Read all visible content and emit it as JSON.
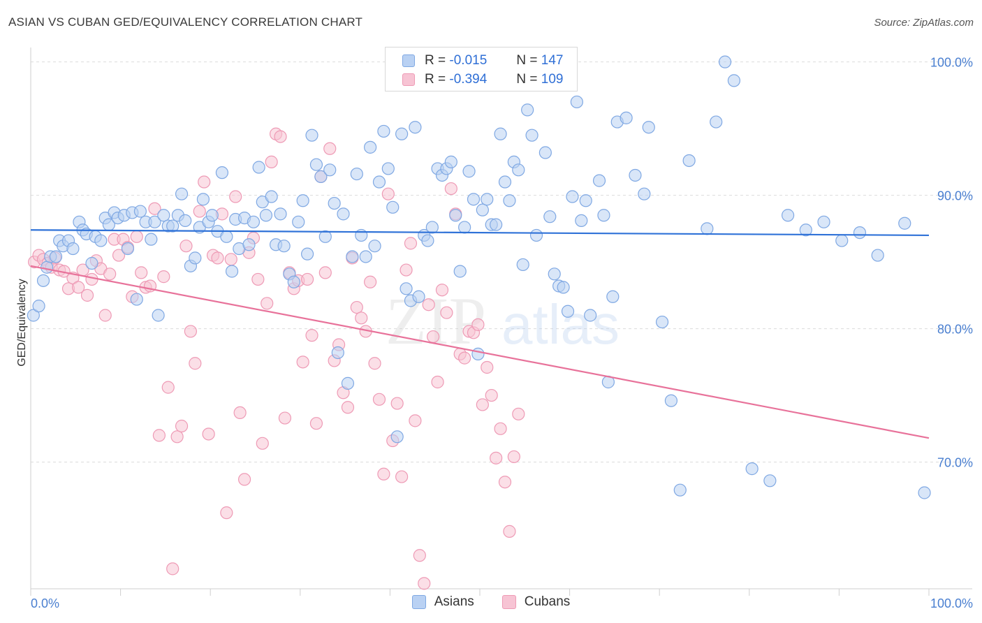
{
  "title": "ASIAN VS CUBAN GED/EQUIVALENCY CORRELATION CHART",
  "source": "Source: ZipAtlas.com",
  "watermark": {
    "zip": "ZIP",
    "atlas": "atlas"
  },
  "colors": {
    "asian_fill": "#b9d1f3",
    "asian_stroke": "#7fa8e3",
    "asian_line": "#2f72d8",
    "cuban_fill": "#f7c4d4",
    "cuban_stroke": "#ee9ab5",
    "cuban_line": "#e8729a",
    "grid": "#dcdcdc",
    "accent_text": "#4a7fd0"
  },
  "legend": {
    "rows": [
      {
        "r_label": "R =",
        "r_value": "-0.015",
        "n_label": "N =",
        "n_value": "147"
      },
      {
        "r_label": "R =",
        "r_value": "-0.394",
        "n_label": "N =",
        "n_value": "109"
      }
    ]
  },
  "bottom_legend": {
    "asians": "Asians",
    "cubans": "Cubans"
  },
  "chart_data": {
    "type": "scatter",
    "title": "ASIAN VS CUBAN GED/EQUIVALENCY CORRELATION CHART",
    "xlabel": "",
    "ylabel": "GED/Equivalency",
    "xlim": [
      0,
      100
    ],
    "ylim": [
      60.5,
      101.5
    ],
    "x_tick_labels": [
      "0.0%",
      "100.0%"
    ],
    "y_ticks": [
      {
        "value": 100,
        "label": "100.0%"
      },
      {
        "value": 90,
        "label": "90.0%"
      },
      {
        "value": 80,
        "label": "80.0%"
      },
      {
        "value": 70,
        "label": "70.0%"
      }
    ],
    "grid": true,
    "legend_position": "top-center",
    "series": [
      {
        "name": "Asians",
        "r": -0.015,
        "n": 147,
        "trend": {
          "x": [
            0,
            100
          ],
          "y": [
            87.4,
            87.0
          ]
        },
        "points": [
          [
            0.3,
            81.0
          ],
          [
            0.9,
            81.7
          ],
          [
            1.4,
            83.6
          ],
          [
            1.8,
            84.6
          ],
          [
            2.2,
            85.4
          ],
          [
            2.8,
            85.4
          ],
          [
            3.2,
            86.6
          ],
          [
            3.6,
            86.2
          ],
          [
            4.2,
            86.6
          ],
          [
            4.7,
            86.0
          ],
          [
            5.4,
            88.0
          ],
          [
            5.8,
            87.4
          ],
          [
            6.2,
            87.1
          ],
          [
            6.8,
            84.9
          ],
          [
            7.2,
            86.9
          ],
          [
            7.8,
            86.6
          ],
          [
            8.3,
            88.3
          ],
          [
            8.7,
            87.8
          ],
          [
            9.3,
            88.7
          ],
          [
            9.7,
            88.3
          ],
          [
            10.4,
            88.5
          ],
          [
            10.8,
            86.0
          ],
          [
            11.3,
            88.7
          ],
          [
            11.8,
            82.2
          ],
          [
            12.2,
            88.8
          ],
          [
            12.8,
            88.0
          ],
          [
            13.4,
            86.7
          ],
          [
            13.8,
            88.0
          ],
          [
            14.2,
            81.0
          ],
          [
            14.8,
            88.5
          ],
          [
            15.3,
            87.7
          ],
          [
            15.8,
            87.7
          ],
          [
            16.4,
            88.5
          ],
          [
            16.8,
            90.1
          ],
          [
            17.2,
            88.1
          ],
          [
            17.8,
            84.7
          ],
          [
            18.3,
            85.3
          ],
          [
            18.8,
            87.6
          ],
          [
            19.2,
            89.7
          ],
          [
            19.8,
            88.0
          ],
          [
            20.2,
            88.5
          ],
          [
            20.8,
            87.3
          ],
          [
            21.3,
            91.7
          ],
          [
            21.8,
            86.9
          ],
          [
            22.4,
            84.3
          ],
          [
            22.8,
            88.2
          ],
          [
            23.2,
            86.0
          ],
          [
            23.8,
            88.3
          ],
          [
            24.3,
            86.3
          ],
          [
            24.8,
            88.0
          ],
          [
            25.4,
            92.1
          ],
          [
            25.8,
            89.5
          ],
          [
            26.2,
            88.5
          ],
          [
            26.8,
            89.9
          ],
          [
            27.3,
            86.3
          ],
          [
            27.8,
            88.6
          ],
          [
            28.2,
            86.2
          ],
          [
            28.8,
            84.1
          ],
          [
            29.3,
            83.5
          ],
          [
            29.8,
            88.0
          ],
          [
            30.3,
            89.6
          ],
          [
            30.8,
            85.6
          ],
          [
            31.3,
            94.5
          ],
          [
            31.8,
            92.3
          ],
          [
            32.3,
            91.4
          ],
          [
            32.8,
            86.9
          ],
          [
            33.3,
            91.9
          ],
          [
            33.8,
            89.4
          ],
          [
            34.2,
            78.2
          ],
          [
            34.8,
            88.6
          ],
          [
            35.3,
            75.9
          ],
          [
            35.8,
            85.4
          ],
          [
            36.3,
            91.6
          ],
          [
            36.8,
            87.0
          ],
          [
            37.3,
            85.4
          ],
          [
            37.8,
            93.6
          ],
          [
            38.3,
            86.2
          ],
          [
            38.8,
            91.0
          ],
          [
            39.3,
            94.8
          ],
          [
            39.8,
            92.0
          ],
          [
            40.3,
            89.1
          ],
          [
            40.8,
            71.9
          ],
          [
            41.3,
            94.6
          ],
          [
            41.8,
            83.0
          ],
          [
            42.3,
            82.1
          ],
          [
            42.8,
            95.1
          ],
          [
            43.2,
            82.4
          ],
          [
            43.8,
            87.0
          ],
          [
            44.2,
            86.6
          ],
          [
            44.7,
            87.6
          ],
          [
            45.3,
            92.0
          ],
          [
            45.8,
            91.5
          ],
          [
            46.3,
            92.0
          ],
          [
            46.8,
            92.5
          ],
          [
            47.3,
            88.5
          ],
          [
            47.8,
            84.3
          ],
          [
            48.3,
            87.6
          ],
          [
            48.8,
            91.8
          ],
          [
            49.3,
            89.7
          ],
          [
            49.8,
            78.1
          ],
          [
            50.3,
            88.9
          ],
          [
            50.8,
            89.7
          ],
          [
            51.3,
            87.8
          ],
          [
            51.8,
            87.8
          ],
          [
            52.3,
            94.6
          ],
          [
            52.8,
            91.0
          ],
          [
            53.3,
            89.6
          ],
          [
            53.8,
            92.5
          ],
          [
            54.3,
            91.9
          ],
          [
            54.8,
            84.8
          ],
          [
            55.3,
            96.4
          ],
          [
            55.8,
            94.5
          ],
          [
            56.3,
            87.0
          ],
          [
            57.3,
            93.2
          ],
          [
            57.8,
            88.4
          ],
          [
            58.3,
            84.1
          ],
          [
            58.8,
            83.2
          ],
          [
            59.3,
            83.1
          ],
          [
            59.8,
            81.3
          ],
          [
            60.3,
            89.9
          ],
          [
            60.8,
            97.0
          ],
          [
            61.3,
            88.1
          ],
          [
            61.8,
            89.6
          ],
          [
            62.3,
            81.0
          ],
          [
            63.3,
            91.1
          ],
          [
            63.8,
            88.5
          ],
          [
            64.3,
            76.0
          ],
          [
            64.8,
            82.4
          ],
          [
            65.3,
            95.5
          ],
          [
            66.3,
            95.8
          ],
          [
            67.3,
            91.5
          ],
          [
            68.3,
            90.1
          ],
          [
            68.8,
            95.1
          ],
          [
            70.3,
            80.5
          ],
          [
            71.3,
            74.6
          ],
          [
            72.3,
            67.9
          ],
          [
            73.3,
            92.6
          ],
          [
            75.3,
            87.5
          ],
          [
            76.3,
            95.5
          ],
          [
            77.3,
            100.0
          ],
          [
            78.3,
            98.6
          ],
          [
            80.3,
            69.5
          ],
          [
            82.3,
            68.6
          ],
          [
            84.3,
            88.5
          ],
          [
            86.3,
            87.4
          ],
          [
            88.3,
            88.0
          ],
          [
            90.3,
            86.6
          ],
          [
            92.3,
            87.2
          ],
          [
            94.3,
            85.5
          ],
          [
            97.3,
            87.9
          ],
          [
            99.5,
            67.7
          ]
        ]
      },
      {
        "name": "Cubans",
        "r": -0.394,
        "n": 109,
        "trend": {
          "x": [
            0,
            100
          ],
          "y": [
            84.7,
            71.8
          ]
        },
        "points": [
          [
            0.4,
            85.0
          ],
          [
            0.9,
            85.5
          ],
          [
            1.4,
            85.2
          ],
          [
            1.9,
            84.9
          ],
          [
            2.3,
            84.6
          ],
          [
            2.7,
            85.3
          ],
          [
            3.2,
            84.4
          ],
          [
            3.7,
            84.3
          ],
          [
            4.2,
            83.0
          ],
          [
            4.7,
            83.8
          ],
          [
            5.3,
            83.1
          ],
          [
            5.8,
            84.4
          ],
          [
            6.3,
            82.5
          ],
          [
            6.8,
            83.7
          ],
          [
            7.3,
            85.1
          ],
          [
            7.8,
            84.5
          ],
          [
            8.3,
            81.0
          ],
          [
            8.8,
            84.1
          ],
          [
            9.3,
            86.7
          ],
          [
            9.8,
            85.5
          ],
          [
            10.3,
            86.7
          ],
          [
            10.8,
            86.1
          ],
          [
            11.3,
            82.4
          ],
          [
            11.8,
            86.9
          ],
          [
            12.3,
            84.2
          ],
          [
            12.8,
            83.1
          ],
          [
            13.3,
            83.2
          ],
          [
            13.8,
            89.0
          ],
          [
            14.3,
            72.0
          ],
          [
            14.8,
            83.9
          ],
          [
            15.3,
            75.6
          ],
          [
            15.8,
            62.0
          ],
          [
            16.3,
            71.9
          ],
          [
            16.8,
            72.7
          ],
          [
            17.3,
            86.2
          ],
          [
            17.8,
            79.8
          ],
          [
            18.3,
            77.4
          ],
          [
            18.8,
            88.8
          ],
          [
            19.3,
            91.0
          ],
          [
            19.8,
            72.1
          ],
          [
            20.3,
            85.5
          ],
          [
            20.8,
            85.3
          ],
          [
            21.3,
            88.6
          ],
          [
            21.8,
            66.2
          ],
          [
            22.3,
            85.2
          ],
          [
            22.8,
            89.9
          ],
          [
            23.3,
            73.7
          ],
          [
            23.8,
            68.7
          ],
          [
            24.3,
            85.7
          ],
          [
            24.8,
            86.8
          ],
          [
            25.3,
            83.7
          ],
          [
            25.8,
            71.4
          ],
          [
            26.3,
            81.9
          ],
          [
            26.8,
            92.5
          ],
          [
            27.3,
            94.6
          ],
          [
            27.8,
            94.4
          ],
          [
            28.3,
            73.3
          ],
          [
            28.8,
            84.2
          ],
          [
            29.3,
            83.0
          ],
          [
            29.8,
            83.6
          ],
          [
            30.3,
            77.5
          ],
          [
            30.8,
            83.7
          ],
          [
            31.3,
            79.5
          ],
          [
            31.8,
            72.9
          ],
          [
            32.3,
            91.4
          ],
          [
            32.8,
            84.2
          ],
          [
            33.3,
            93.5
          ],
          [
            33.8,
            77.6
          ],
          [
            34.3,
            78.8
          ],
          [
            34.8,
            75.2
          ],
          [
            35.3,
            74.1
          ],
          [
            35.8,
            85.3
          ],
          [
            36.3,
            81.6
          ],
          [
            36.8,
            80.8
          ],
          [
            37.3,
            79.8
          ],
          [
            37.8,
            83.5
          ],
          [
            38.3,
            77.4
          ],
          [
            38.8,
            74.7
          ],
          [
            39.3,
            69.1
          ],
          [
            39.8,
            90.1
          ],
          [
            40.3,
            71.6
          ],
          [
            40.8,
            74.4
          ],
          [
            41.3,
            68.9
          ],
          [
            41.8,
            84.4
          ],
          [
            42.3,
            86.4
          ],
          [
            42.8,
            73.1
          ],
          [
            43.3,
            63.0
          ],
          [
            43.8,
            60.9
          ],
          [
            44.3,
            81.8
          ],
          [
            44.8,
            79.4
          ],
          [
            45.3,
            76.0
          ],
          [
            45.8,
            82.9
          ],
          [
            46.3,
            81.2
          ],
          [
            46.8,
            90.5
          ],
          [
            47.3,
            88.6
          ],
          [
            47.8,
            78.1
          ],
          [
            48.3,
            77.8
          ],
          [
            48.8,
            79.8
          ],
          [
            49.3,
            79.7
          ],
          [
            49.8,
            80.3
          ],
          [
            50.3,
            74.3
          ],
          [
            50.8,
            77.1
          ],
          [
            51.3,
            75.0
          ],
          [
            51.8,
            70.3
          ],
          [
            52.3,
            72.5
          ],
          [
            52.8,
            68.5
          ],
          [
            53.3,
            64.8
          ],
          [
            53.8,
            70.4
          ],
          [
            54.3,
            73.6
          ]
        ]
      }
    ]
  }
}
